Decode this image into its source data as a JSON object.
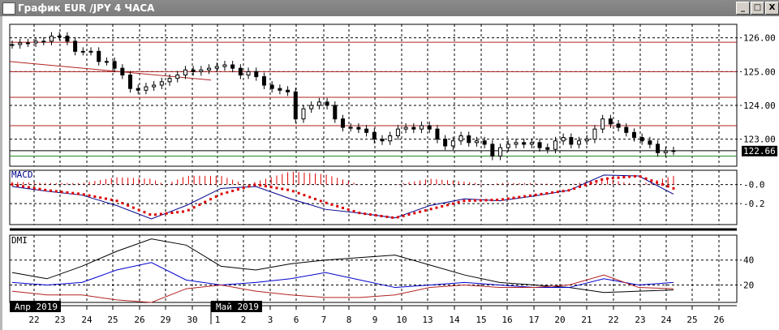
{
  "window": {
    "title": "График EUR /JPY  4 ЧАСА",
    "minimize": "_",
    "maximize": "□",
    "close": "X"
  },
  "chart_data": [
    {
      "type": "candlestick",
      "panel": "price",
      "yticks": [
        "126.00",
        "125.00",
        "124.00",
        "123.00"
      ],
      "ytick_values": [
        126,
        125,
        124,
        123
      ],
      "ylim": [
        122.2,
        126.4
      ],
      "current_price": "122.66",
      "current_price_value": 122.66,
      "horizontal_levels_red": [
        125.87,
        125.0,
        124.24,
        123.4
      ],
      "horizontal_level_green": 122.5,
      "trendline_red": {
        "from": 125.3,
        "to": 124.75
      },
      "closes": [
        125.8,
        125.85,
        125.85,
        125.9,
        125.9,
        126.05,
        126.05,
        125.9,
        125.6,
        125.6,
        125.6,
        125.3,
        125.3,
        125.1,
        124.9,
        124.5,
        124.45,
        124.55,
        124.6,
        124.7,
        124.8,
        124.9,
        125.05,
        125.0,
        125.05,
        125.1,
        125.15,
        125.2,
        125.1,
        124.9,
        125.0,
        124.85,
        124.6,
        124.5,
        124.45,
        124.4,
        123.6,
        123.9,
        124.0,
        124.1,
        124.0,
        123.6,
        123.35,
        123.35,
        123.3,
        123.2,
        123.0,
        122.95,
        123.1,
        123.3,
        123.35,
        123.3,
        123.4,
        123.3,
        123.0,
        122.8,
        122.95,
        123.1,
        122.9,
        122.95,
        122.85,
        122.5,
        122.75,
        122.85,
        122.9,
        122.85,
        122.9,
        122.75,
        122.7,
        122.95,
        123.05,
        122.85,
        122.95,
        123.0,
        123.3,
        123.6,
        123.45,
        123.35,
        123.2,
        123.05,
        122.95,
        122.85,
        122.6,
        122.65,
        122.66
      ],
      "colors": {
        "up": "#ffffff",
        "down": "#000000",
        "levels": "#b22222",
        "green": "#228b22"
      }
    },
    {
      "type": "line",
      "panel": "macd",
      "title": "MACD",
      "yticks": [
        "-0.0",
        "-0.2"
      ],
      "ytick_values": [
        0,
        -0.2
      ],
      "ylim": [
        -0.42,
        0.15
      ],
      "macd": [
        -0.02,
        -0.07,
        -0.11,
        -0.22,
        -0.36,
        -0.22,
        -0.04,
        -0.02,
        -0.15,
        -0.26,
        -0.3,
        -0.35,
        -0.22,
        -0.15,
        -0.17,
        -0.12,
        -0.06,
        0.1,
        0.09,
        -0.1
      ],
      "signal": [
        0.0,
        -0.06,
        -0.1,
        -0.17,
        -0.32,
        -0.28,
        -0.1,
        0.0,
        -0.06,
        -0.19,
        -0.3,
        -0.35,
        -0.26,
        -0.17,
        -0.16,
        -0.11,
        -0.06,
        0.06,
        0.09,
        -0.04
      ],
      "colors": {
        "macd": "#00008b",
        "signal": "#dd0000",
        "histogram": "#dd0000"
      }
    },
    {
      "type": "line",
      "panel": "dmi",
      "title": "DMI",
      "yticks": [
        "40",
        "20"
      ],
      "ytick_values": [
        40,
        20
      ],
      "ylim": [
        6,
        60
      ],
      "adx": [
        30,
        25,
        35,
        47,
        57,
        52,
        35,
        32,
        37,
        40,
        42,
        44,
        36,
        28,
        22,
        20,
        18,
        14,
        15,
        16
      ],
      "plus_di": [
        22,
        20,
        22,
        32,
        38,
        24,
        20,
        22,
        25,
        30,
        24,
        18,
        20,
        22,
        20,
        18,
        18,
        25,
        20,
        22
      ],
      "minus_di": [
        15,
        12,
        12,
        8,
        6,
        17,
        20,
        15,
        12,
        10,
        10,
        12,
        18,
        20,
        18,
        18,
        20,
        28,
        18,
        17
      ],
      "colors": {
        "adx": "#000000",
        "plus_di": "#0000cc",
        "minus_di": "#b22222"
      }
    }
  ],
  "x_axis": {
    "month_labels": [
      "Апр 2019",
      "Май 2019"
    ],
    "ticks": [
      "22",
      "23",
      "24",
      "25",
      "26",
      "29",
      "30",
      "1",
      "2",
      "3",
      "6",
      "7",
      "8",
      "9",
      "10",
      "13",
      "14",
      "15",
      "16",
      "17",
      "20",
      "21",
      "22",
      "23",
      "24",
      "25",
      "26"
    ]
  }
}
